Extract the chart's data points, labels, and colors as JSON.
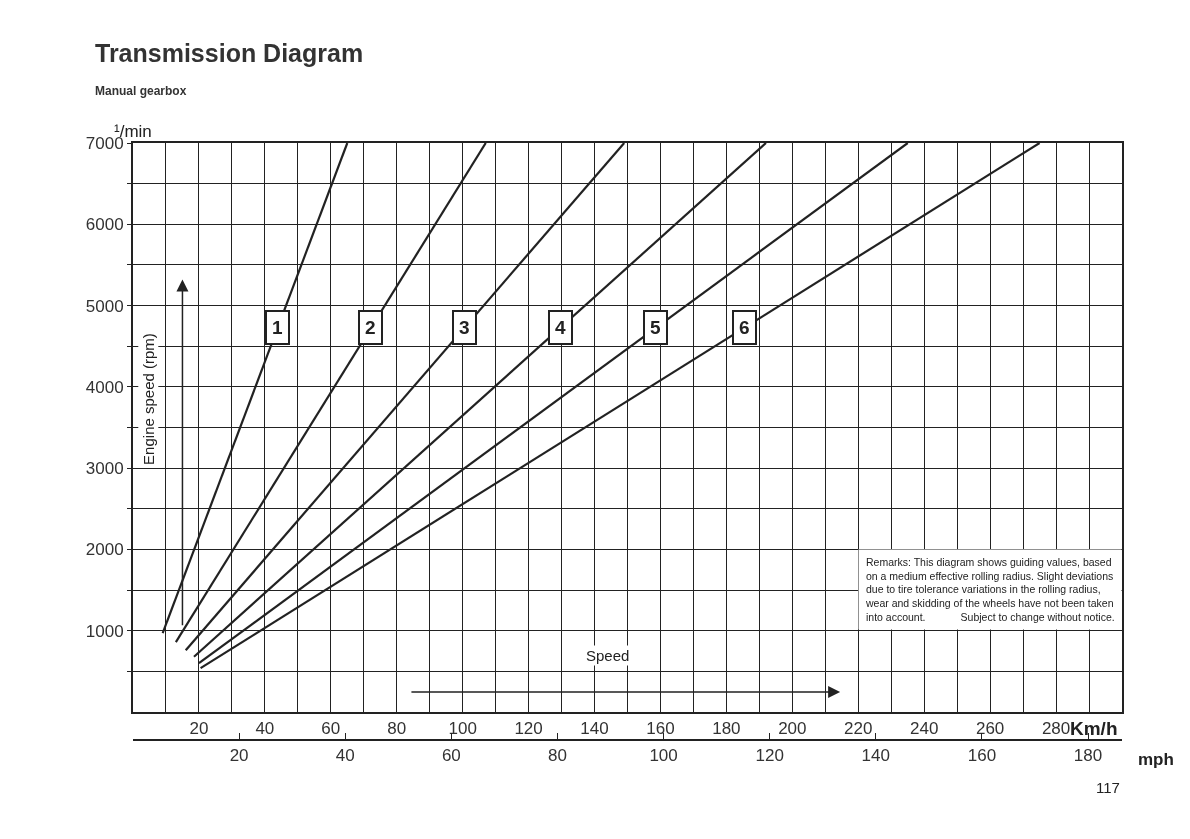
{
  "chart_data": {
    "type": "line",
    "title": "Transmission Diagram",
    "subtitle": "Manual gearbox",
    "xlabel": "Km/h",
    "x2label": "mph",
    "ylabel": "¹/min",
    "annotations": [
      "Engine speed (rpm)",
      "Speed",
      "Remarks: This diagram shows guiding values, based\non a medium effective rolling radius. Slight deviations\ndue to tire tolerance variations in the rolling radius,\nwear and skidding of the wheels have not been taken\ninto account.            Subject to change without notice.",
      "117"
    ],
    "series": [
      {
        "name": "1",
        "color": "#222222",
        "x": [
          9,
          65
        ],
        "values": [
          970,
          7000
        ]
      },
      {
        "name": "2",
        "color": "#222222",
        "x": [
          13,
          107
        ],
        "values": [
          860,
          7000
        ]
      },
      {
        "name": "3",
        "color": "#222222",
        "x": [
          16,
          149
        ],
        "values": [
          760,
          7000
        ]
      },
      {
        "name": "4",
        "color": "#222222",
        "x": [
          18.5,
          192
        ],
        "values": [
          680,
          7000
        ]
      },
      {
        "name": "5",
        "color": "#222222",
        "x": [
          20,
          235
        ],
        "values": [
          600,
          7000
        ]
      },
      {
        "name": "6",
        "color": "#222222",
        "x": [
          20.5,
          275
        ],
        "values": [
          540,
          7000
        ]
      }
    ],
    "xlim": [
      0,
      300
    ],
    "xticks": [
      {
        "value": 10,
        "label": null
      },
      20,
      {
        "value": 30,
        "label": null
      },
      40,
      {
        "value": 50,
        "label": null
      },
      60,
      {
        "value": 70,
        "label": null
      },
      80,
      {
        "value": 90,
        "label": null
      },
      100,
      {
        "value": 110,
        "label": null
      },
      120,
      {
        "value": 130,
        "label": null
      },
      140,
      {
        "value": 150,
        "label": null
      },
      160,
      {
        "value": 170,
        "label": null
      },
      180,
      {
        "value": 190,
        "label": null
      },
      200,
      {
        "value": 210,
        "label": null
      },
      220,
      {
        "value": 230,
        "label": null
      },
      240,
      {
        "value": 250,
        "label": null
      },
      260,
      {
        "value": 270,
        "label": null
      },
      280,
      {
        "value": 290,
        "label": null
      }
    ],
    "x2lim": [
      0,
      186.4
    ],
    "x2ticks": [
      20,
      40,
      60,
      80,
      100,
      120,
      140,
      160,
      180
    ],
    "ylim": [
      0,
      7000
    ],
    "yticks": [
      {
        "value": 500,
        "label": null
      },
      1000,
      {
        "value": 1500,
        "label": null
      },
      2000,
      {
        "value": 2500,
        "label": null
      },
      3000,
      {
        "value": 3500,
        "label": null
      },
      4000,
      {
        "value": 4500,
        "label": null
      },
      5000,
      {
        "value": 5500,
        "label": null
      },
      6000,
      {
        "value": 6500,
        "label": null
      },
      7000
    ],
    "grid": true,
    "legend": false,
    "marker": "none",
    "line_style": "solid"
  }
}
